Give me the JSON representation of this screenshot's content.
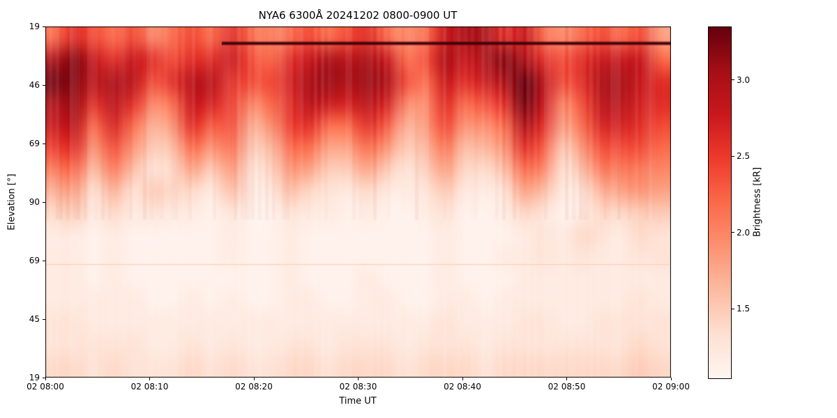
{
  "title": "NYA6 6300Å 20241202 0800-0900 UT",
  "axes": {
    "xlabel": "Time UT",
    "ylabel": "Elevation [°]",
    "x_ticks": [
      "02 08:00",
      "02 08:10",
      "02 08:20",
      "02 08:30",
      "02 08:40",
      "02 08:50",
      "02 09:00"
    ],
    "y_ticks": [
      "19",
      "46",
      "69",
      "90",
      "69",
      "45",
      "19"
    ]
  },
  "colorbar": {
    "label": "Brightness [kR]",
    "ticks": [
      "1.5",
      "2.0",
      "2.5",
      "3.0"
    ],
    "tick_values": [
      1.5,
      2.0,
      2.5,
      3.0
    ],
    "vmin": 1.05,
    "vmax": 3.35,
    "colormap": "Reds"
  },
  "chart_data": {
    "type": "heatmap",
    "title": "NYA6 6300Å 20241202 0800-0900 UT",
    "x_start": "02 08:00",
    "x_end": "02 09:00",
    "elevation_scan_deg": [
      19,
      46,
      69,
      90,
      69,
      45,
      19
    ],
    "value_units": "kR",
    "vmin": 1.05,
    "vmax": 3.35,
    "n_time_bins": 32,
    "n_elevation_bins": 16,
    "values_kR": [
      [
        2.2,
        2.6,
        2.4,
        2.2,
        2.4,
        2.0,
        2.2,
        2.4,
        2.2,
        2.6,
        2.2,
        2.0,
        2.2,
        2.4,
        2.2,
        2.4,
        2.6,
        2.2,
        2.0,
        2.2,
        2.8,
        3.0,
        3.0,
        2.6,
        2.8,
        2.2,
        2.0,
        2.2,
        2.4,
        2.2,
        2.4,
        1.8
      ],
      [
        3.0,
        3.2,
        2.8,
        2.6,
        2.8,
        2.6,
        2.4,
        2.6,
        2.6,
        2.8,
        2.4,
        2.2,
        2.6,
        2.8,
        3.0,
        2.9,
        3.0,
        2.8,
        2.2,
        2.4,
        3.0,
        2.8,
        3.0,
        3.2,
        3.0,
        2.6,
        2.4,
        2.6,
        2.8,
        2.8,
        2.8,
        2.2
      ],
      [
        3.3,
        3.2,
        2.9,
        3.0,
        2.9,
        2.4,
        2.6,
        2.9,
        2.9,
        2.6,
        2.4,
        2.4,
        2.7,
        3.0,
        3.1,
        3.0,
        3.1,
        3.0,
        2.4,
        2.2,
        2.8,
        2.6,
        2.8,
        3.0,
        3.4,
        2.9,
        2.4,
        2.6,
        3.0,
        3.0,
        2.8,
        2.6
      ],
      [
        3.0,
        3.1,
        2.6,
        2.9,
        2.6,
        2.0,
        2.2,
        2.8,
        2.7,
        2.5,
        2.0,
        2.2,
        2.6,
        2.9,
        2.8,
        2.7,
        2.9,
        2.7,
        2.0,
        2.0,
        2.6,
        2.2,
        2.4,
        2.6,
        3.3,
        2.8,
        2.0,
        2.4,
        2.9,
        2.9,
        2.7,
        2.6
      ],
      [
        2.8,
        2.9,
        2.2,
        2.7,
        2.2,
        1.7,
        1.9,
        2.6,
        2.3,
        2.4,
        1.7,
        1.9,
        2.5,
        2.6,
        2.2,
        2.2,
        2.6,
        2.3,
        1.7,
        1.9,
        2.4,
        1.9,
        2.0,
        2.2,
        3.0,
        2.6,
        1.8,
        2.2,
        2.7,
        2.7,
        2.6,
        2.4
      ],
      [
        2.5,
        2.6,
        1.9,
        2.4,
        1.9,
        1.5,
        1.6,
        2.2,
        1.9,
        2.2,
        1.5,
        1.6,
        2.2,
        2.2,
        1.8,
        1.8,
        2.2,
        1.9,
        1.5,
        1.7,
        2.1,
        1.6,
        1.7,
        1.9,
        2.6,
        2.3,
        1.5,
        1.9,
        2.4,
        2.4,
        2.4,
        2.2
      ],
      [
        2.1,
        2.2,
        1.6,
        2.1,
        1.6,
        1.3,
        1.4,
        1.8,
        1.5,
        1.9,
        1.3,
        1.4,
        1.9,
        1.8,
        1.5,
        1.5,
        1.8,
        1.5,
        1.3,
        1.5,
        1.8,
        1.4,
        1.4,
        1.6,
        2.2,
        2.0,
        1.3,
        1.6,
        2.1,
        2.1,
        2.1,
        2.0
      ],
      [
        1.7,
        1.8,
        1.3,
        1.7,
        1.3,
        1.5,
        1.4,
        1.4,
        1.2,
        1.6,
        1.2,
        1.2,
        1.6,
        1.4,
        1.3,
        1.2,
        1.4,
        1.2,
        1.2,
        1.3,
        1.5,
        1.2,
        1.2,
        1.3,
        1.8,
        1.6,
        1.2,
        1.3,
        1.7,
        1.8,
        1.9,
        1.8
      ],
      [
        1.4,
        1.5,
        1.2,
        1.4,
        1.2,
        1.3,
        1.2,
        1.2,
        1.1,
        1.3,
        1.1,
        1.1,
        1.3,
        1.2,
        1.2,
        1.1,
        1.2,
        1.1,
        1.1,
        1.2,
        1.3,
        1.1,
        1.1,
        1.2,
        1.4,
        1.3,
        1.1,
        1.2,
        1.4,
        1.4,
        1.5,
        1.5
      ],
      [
        1.2,
        1.2,
        1.1,
        1.2,
        1.1,
        1.1,
        1.1,
        1.1,
        1.1,
        1.2,
        1.1,
        1.1,
        1.2,
        1.1,
        1.1,
        1.1,
        1.1,
        1.1,
        1.1,
        1.1,
        1.2,
        1.1,
        1.1,
        1.1,
        1.2,
        1.3,
        1.2,
        1.4,
        1.3,
        1.2,
        1.4,
        1.3
      ],
      [
        1.2,
        1.2,
        1.1,
        1.2,
        1.1,
        1.1,
        1.1,
        1.1,
        1.1,
        1.2,
        1.1,
        1.1,
        1.2,
        1.1,
        1.1,
        1.1,
        1.1,
        1.1,
        1.1,
        1.1,
        1.2,
        1.1,
        1.1,
        1.2,
        1.2,
        1.3,
        1.2,
        1.3,
        1.2,
        1.2,
        1.3,
        1.3
      ],
      [
        1.2,
        1.2,
        1.1,
        1.2,
        1.1,
        1.1,
        1.1,
        1.1,
        1.1,
        1.1,
        1.1,
        1.1,
        1.2,
        1.1,
        1.1,
        1.1,
        1.2,
        1.1,
        1.1,
        1.1,
        1.2,
        1.1,
        1.1,
        1.1,
        1.2,
        1.2,
        1.2,
        1.2,
        1.2,
        1.2,
        1.2,
        1.2
      ],
      [
        1.2,
        1.2,
        1.2,
        1.2,
        1.2,
        1.1,
        1.1,
        1.2,
        1.1,
        1.2,
        1.1,
        1.1,
        1.2,
        1.2,
        1.1,
        1.1,
        1.2,
        1.2,
        1.1,
        1.1,
        1.2,
        1.2,
        1.1,
        1.2,
        1.2,
        1.2,
        1.2,
        1.2,
        1.2,
        1.2,
        1.3,
        1.2
      ],
      [
        1.3,
        1.3,
        1.2,
        1.2,
        1.2,
        1.2,
        1.2,
        1.2,
        1.2,
        1.2,
        1.2,
        1.2,
        1.2,
        1.2,
        1.2,
        1.2,
        1.2,
        1.2,
        1.2,
        1.2,
        1.3,
        1.2,
        1.2,
        1.2,
        1.3,
        1.3,
        1.2,
        1.2,
        1.3,
        1.3,
        1.3,
        1.3
      ],
      [
        1.3,
        1.3,
        1.3,
        1.3,
        1.3,
        1.2,
        1.2,
        1.3,
        1.2,
        1.3,
        1.2,
        1.2,
        1.3,
        1.3,
        1.2,
        1.3,
        1.3,
        1.3,
        1.2,
        1.3,
        1.3,
        1.3,
        1.2,
        1.3,
        1.3,
        1.3,
        1.3,
        1.3,
        1.3,
        1.3,
        1.4,
        1.3
      ],
      [
        1.4,
        1.4,
        1.3,
        1.4,
        1.3,
        1.3,
        1.3,
        1.4,
        1.3,
        1.4,
        1.3,
        1.3,
        1.4,
        1.4,
        1.3,
        1.4,
        1.4,
        1.4,
        1.3,
        1.4,
        1.4,
        1.4,
        1.3,
        1.4,
        1.4,
        1.4,
        1.4,
        1.4,
        1.4,
        1.4,
        1.5,
        1.4
      ]
    ],
    "overlays": {
      "dark_horizontal_line": {
        "description": "saturated dark row near top of scan",
        "elevation_frac": 0.048,
        "t_start_frac": 0.282,
        "t_end_frac": 1.0,
        "value_kR": 3.35
      },
      "faint_line": {
        "description": "faint brighter row in lower half of scan",
        "elevation_frac": 0.678,
        "t_start_frac": 0.0,
        "t_end_frac": 1.0,
        "value_kR": 1.5
      }
    }
  }
}
